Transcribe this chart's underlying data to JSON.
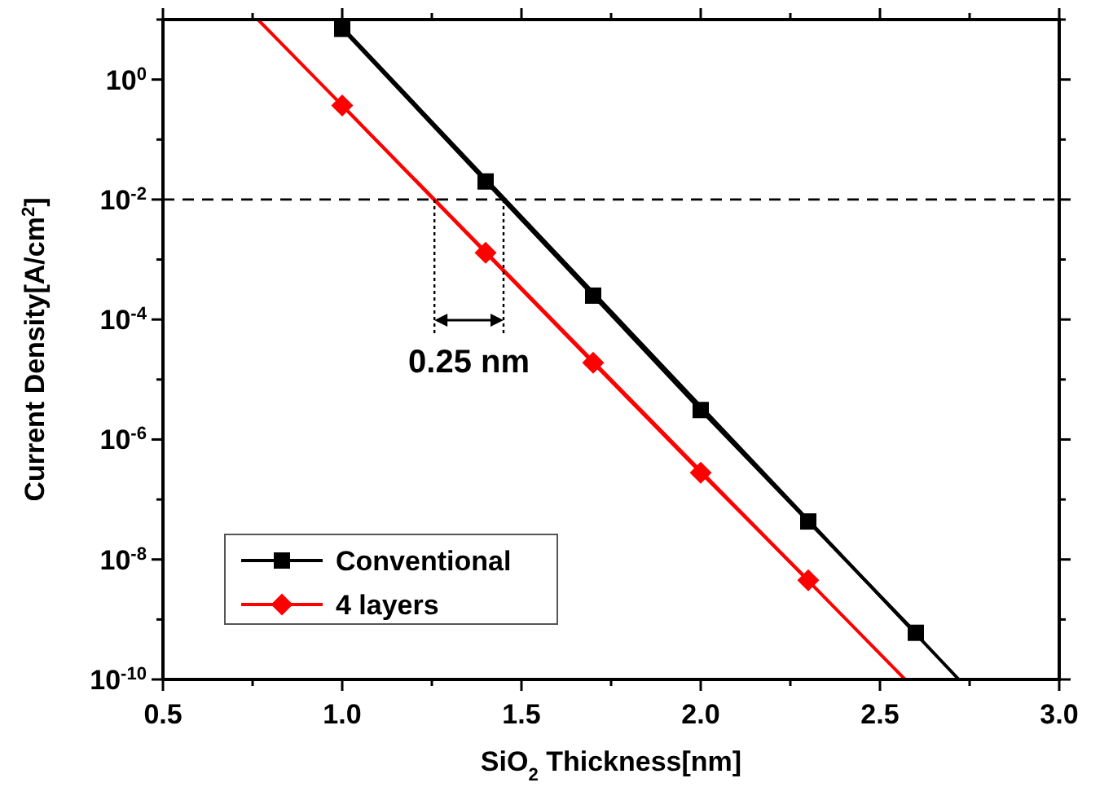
{
  "chart_data": {
    "type": "line",
    "xlabel": "SiO$_{2}$ Thickness[nm]",
    "ylabel": "Current Density[A/cm$^{2}$]",
    "log": "y",
    "xlim": [
      0.5,
      3.0
    ],
    "ylim": [
      1e-10,
      10
    ],
    "xticks": [
      0.5,
      {
        "value": 0.75,
        "label": null
      },
      {
        "value": 1,
        "label": "1.0"
      },
      {
        "value": 1.25,
        "label": null
      },
      1.5,
      {
        "value": 1.75,
        "label": null
      },
      {
        "value": 2,
        "label": "2.0"
      },
      {
        "value": 2.25,
        "label": null
      },
      2.5,
      {
        "value": 2.75,
        "label": null
      },
      {
        "value": 3,
        "label": "3.0"
      }
    ],
    "yticks": [
      {
        "value": 1e-10,
        "label": "10$^{-10}$"
      },
      {
        "value": 1e-09,
        "label": null
      },
      {
        "value": 1e-08,
        "label": "10$^{-8}$"
      },
      {
        "value": 1e-07,
        "label": null
      },
      {
        "value": 1e-06,
        "label": "10$^{-6}$"
      },
      {
        "value": 1e-05,
        "label": null
      },
      {
        "value": 0.0001,
        "label": "10$^{-4}$"
      },
      {
        "value": 0.001,
        "label": null
      },
      {
        "value": 0.01,
        "label": "10$^{-2}$"
      },
      {
        "value": 0.1,
        "label": null
      },
      {
        "value": 1,
        "label": "10$^{0}$"
      },
      {
        "value": 10,
        "label": null
      }
    ],
    "series": [
      {
        "name": "Conventional",
        "color": "#000000",
        "marker": "square",
        "x": [
          1.0,
          1.4,
          1.7,
          2.0,
          2.3,
          2.6
        ],
        "values": [
          7,
          0.02,
          0.00025,
          3.1e-06,
          4.3e-08,
          6e-10
        ]
      },
      {
        "name": "4 layers",
        "color": "#ff0000",
        "marker": "diamond",
        "x": [
          1.0,
          1.4,
          1.7,
          2.0,
          2.3
        ],
        "values": [
          0.37,
          0.0013,
          1.9e-05,
          2.8e-07,
          4.5e-09
        ]
      },
      {
        "type": "line",
        "color": "#000000",
        "marker": "none",
        "x": [
          0.98,
          2.72
        ],
        "values": [
          10,
          1e-10
        ]
      },
      {
        "type": "line",
        "color": "#ff0000",
        "marker": "none",
        "x": [
          0.765,
          2.57
        ],
        "values": [
          10,
          1e-10
        ]
      }
    ],
    "ref_lines": [
      {
        "axis": "y",
        "value": 0.01,
        "line_style": "dashed",
        "color": "#000000"
      }
    ],
    "annotations": [
      {
        "text": "0.25 nm",
        "x": 1.45,
        "y": 0.01
      }
    ],
    "legend": "bottom left",
    "grid": false,
    "line_style": "solid"
  }
}
